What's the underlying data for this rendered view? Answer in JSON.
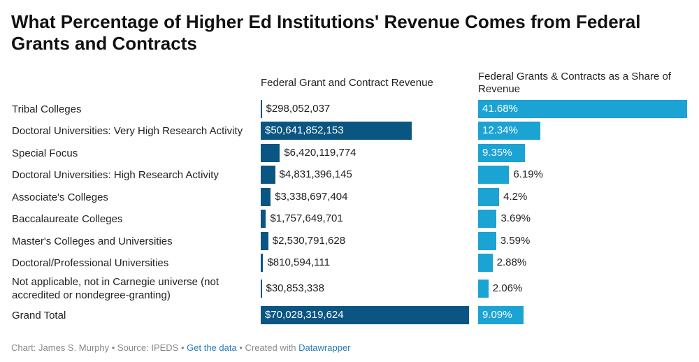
{
  "title": "What Percentage of Higher Ed Institutions' Revenue Comes from Federal Grants and Contracts",
  "colors": {
    "revenue_bar": "#0b5583",
    "share_bar": "#1ba3d4"
  },
  "chart_data": {
    "type": "bar",
    "title": "What Percentage of Higher Ed Institutions' Revenue Comes from Federal Grants and Contracts",
    "categories": [
      "Tribal Colleges",
      "Doctoral Universities: Very High Research Activity",
      "Special Focus",
      "Doctoral Universities: High Research Activity",
      "Associate's Colleges",
      "Baccalaureate Colleges",
      "Master's Colleges and Universities",
      "Doctoral/Professional Universities",
      "Not applicable, not in Carnegie universe (not accredited or nondegree-granting)",
      "Grand Total"
    ],
    "series": [
      {
        "name": "Federal Grant and Contract Revenue",
        "values": [
          298052037,
          50641852153,
          6420119774,
          4831396145,
          3338697404,
          1757649701,
          2530791628,
          810594111,
          30853338,
          70028319624
        ],
        "labels": [
          "$298,052,037",
          "$50,641,852,153",
          "$6,420,119,774",
          "$4,831,396,145",
          "$3,338,697,404",
          "$1,757,649,701",
          "$2,530,791,628",
          "$810,594,111",
          "$30,853,338",
          "$70,028,319,624"
        ]
      },
      {
        "name": "Federal Grants & Contracts as a Share of Revenue",
        "values": [
          41.68,
          12.34,
          9.35,
          6.19,
          4.2,
          3.69,
          3.59,
          2.88,
          2.06,
          9.09
        ],
        "labels": [
          "41.68%",
          "12.34%",
          "9.35%",
          "6.19%",
          "4.2%",
          "3.69%",
          "3.59%",
          "2.88%",
          "2.06%",
          "9.09%"
        ]
      }
    ],
    "xlim": [
      [
        0,
        70028319624
      ],
      [
        0,
        41.68
      ]
    ]
  },
  "footer": {
    "prefix": "Chart: James S. Murphy • Source: IPEDS • ",
    "get_data": "Get the data",
    "middle": " • Created with ",
    "datawrapper": "Datawrapper"
  }
}
